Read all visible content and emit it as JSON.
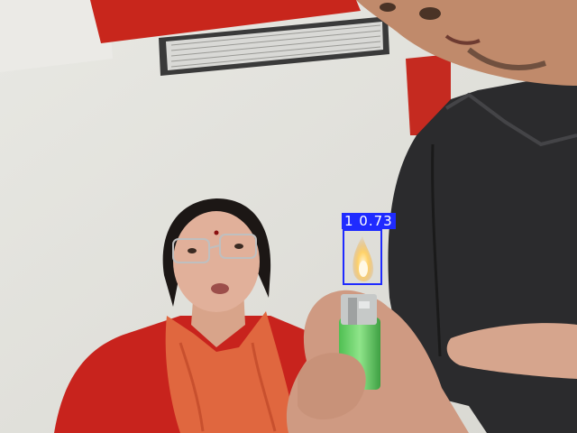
{
  "detection": {
    "class_id": "1",
    "confidence": "0.73",
    "label_text": "1 0.73",
    "box_color": "#1f2bff"
  },
  "scene": {
    "wall_color": "#e6e5e0",
    "ceiling_color": "#e9e8e4",
    "accent_wall_color": "#c8261c"
  }
}
